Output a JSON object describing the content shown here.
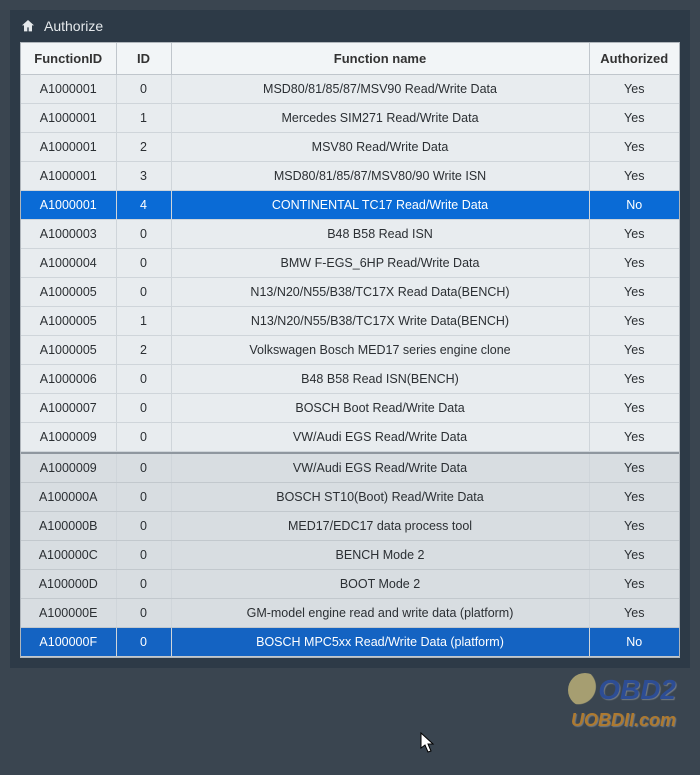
{
  "header": {
    "title": "Authorize",
    "icon": "home-icon"
  },
  "columns": {
    "functionId": "FunctionID",
    "id": "ID",
    "name": "Function name",
    "authorized": "Authorized"
  },
  "upper_selected_row": 4,
  "lower_selected_row": 7,
  "rows_upper": [
    {
      "functionId": "A1000001",
      "id": "0",
      "name": "MSD80/81/85/87/MSV90 Read/Write Data",
      "authorized": "Yes"
    },
    {
      "functionId": "A1000001",
      "id": "1",
      "name": "Mercedes SIM271 Read/Write Data",
      "authorized": "Yes"
    },
    {
      "functionId": "A1000001",
      "id": "2",
      "name": "MSV80 Read/Write Data",
      "authorized": "Yes"
    },
    {
      "functionId": "A1000001",
      "id": "3",
      "name": "MSD80/81/85/87/MSV80/90 Write ISN",
      "authorized": "Yes"
    },
    {
      "functionId": "A1000001",
      "id": "4",
      "name": "CONTINENTAL TC17 Read/Write Data",
      "authorized": "No"
    },
    {
      "functionId": "A1000003",
      "id": "0",
      "name": "B48 B58 Read ISN",
      "authorized": "Yes"
    },
    {
      "functionId": "A1000004",
      "id": "0",
      "name": "BMW F-EGS_6HP Read/Write Data",
      "authorized": "Yes"
    },
    {
      "functionId": "A1000005",
      "id": "0",
      "name": "N13/N20/N55/B38/TC17X Read Data(BENCH)",
      "authorized": "Yes"
    },
    {
      "functionId": "A1000005",
      "id": "1",
      "name": "N13/N20/N55/B38/TC17X Write Data(BENCH)",
      "authorized": "Yes"
    },
    {
      "functionId": "A1000005",
      "id": "2",
      "name": "Volkswagen Bosch MED17 series engine clone",
      "authorized": "Yes"
    },
    {
      "functionId": "A1000006",
      "id": "0",
      "name": "B48 B58 Read ISN(BENCH)",
      "authorized": "Yes"
    },
    {
      "functionId": "A1000007",
      "id": "0",
      "name": "BOSCH Boot Read/Write Data",
      "authorized": "Yes"
    },
    {
      "functionId": "A1000009",
      "id": "0",
      "name": "VW/Audi EGS Read/Write Data",
      "authorized": "Yes"
    }
  ],
  "rows_lower": [
    {
      "functionId": "A1000009",
      "id": "0",
      "name": "VW/Audi EGS Read/Write Data",
      "authorized": "Yes"
    },
    {
      "functionId": "A100000A",
      "id": "0",
      "name": "BOSCH ST10(Boot) Read/Write Data",
      "authorized": "Yes"
    },
    {
      "functionId": "A100000B",
      "id": "0",
      "name": "MED17/EDC17 data process tool",
      "authorized": "Yes"
    },
    {
      "functionId": "A100000C",
      "id": "0",
      "name": "BENCH Mode 2",
      "authorized": "Yes"
    },
    {
      "functionId": "A100000D",
      "id": "0",
      "name": "BOOT Mode 2",
      "authorized": "Yes"
    },
    {
      "functionId": "A100000E",
      "id": "0",
      "name": "GM-model engine read and write data (platform)",
      "authorized": "Yes"
    },
    {
      "functionId": "A100000F",
      "id": "0",
      "name": "BOSCH MPC5xx Read/Write Data (platform)",
      "authorized": "No"
    }
  ],
  "watermark": {
    "line1": "OBD2",
    "line2": "UOBDII.com"
  },
  "colors": {
    "selected_bg": "#0a6bd6",
    "selected_fg": "#ffffff",
    "header_bg": "#2d3a47",
    "table_bg": "#e8ecef",
    "grid": "#cfd5da"
  }
}
